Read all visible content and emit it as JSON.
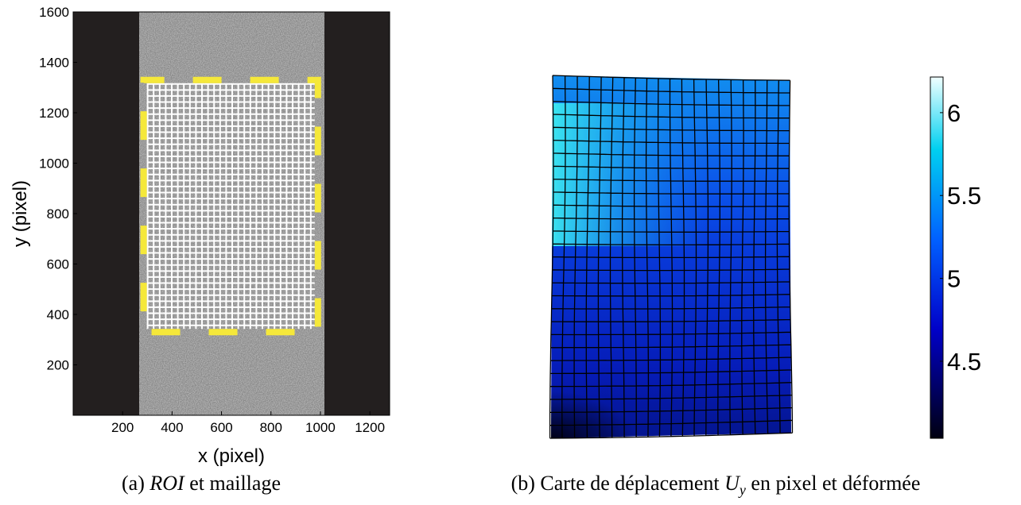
{
  "chart_data": [
    {
      "type": "image",
      "xlabel": "x (pixel)",
      "ylabel": "y (pixel)",
      "xlim": [
        0,
        1280
      ],
      "ylim": [
        0,
        1600
      ],
      "xticks": [
        200,
        400,
        600,
        800,
        1000,
        1200
      ],
      "yticks": [
        200,
        400,
        600,
        800,
        1000,
        1200,
        1400,
        1600
      ],
      "roi": {
        "x": [
          285,
          990
        ],
        "y": [
          330,
          1330
        ]
      },
      "caption": {
        "label": "(a)",
        "emphasis": "ROI",
        "text": "et maillage"
      }
    },
    {
      "type": "colormap",
      "clim": [
        4.035,
        6.215
      ],
      "cticks": [
        4.5,
        5,
        5.5,
        6
      ],
      "caption": {
        "label": "(b) Carte de déplacement",
        "symbol": "U",
        "subscript": "y",
        "text": "en pixel et déformée"
      }
    }
  ]
}
